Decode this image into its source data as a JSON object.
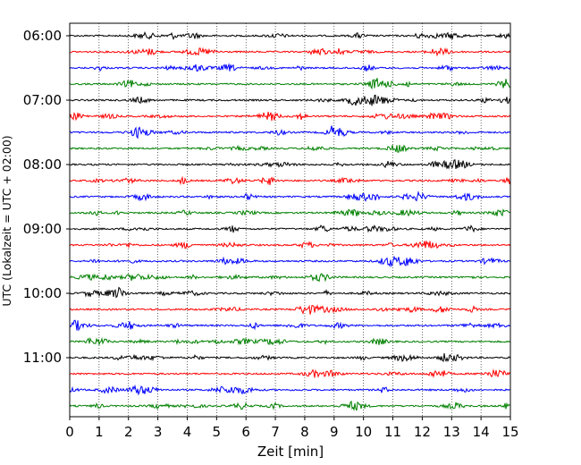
{
  "chart_data": {
    "type": "line",
    "title": "",
    "xlabel": "Zeit  [min]",
    "ylabel": "UTC (Lokalzeit = UTC + 02:00)",
    "x_ticks": [
      0,
      1,
      2,
      3,
      4,
      5,
      6,
      7,
      8,
      9,
      10,
      11,
      12,
      13,
      14,
      15
    ],
    "xlim": [
      0,
      15
    ],
    "y_tick_labels": [
      "06:00",
      "07:00",
      "08:00",
      "09:00",
      "10:00",
      "11:00"
    ],
    "traces_per_hour": 4,
    "trace_count": 24,
    "trace_start_utc": "06:00",
    "trace_interval_minutes": 15,
    "trace_colors": [
      "#000000",
      "#ff0000",
      "#0000ff",
      "#008000"
    ],
    "grid": "vertical dotted",
    "legend": "none"
  }
}
